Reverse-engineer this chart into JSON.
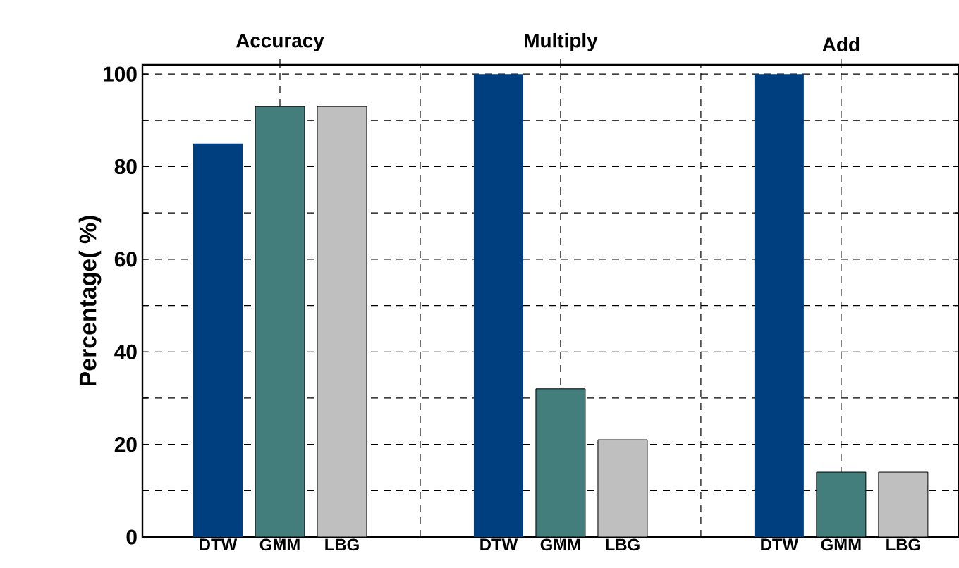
{
  "chart_data": {
    "type": "bar",
    "ylabel": "Percentage( %)",
    "categories": [
      "Accuracy",
      "Multiply",
      "Add"
    ],
    "series": [
      {
        "name": "DTW",
        "color": "#003f7f",
        "values": [
          85,
          100,
          100
        ]
      },
      {
        "name": "GMM",
        "color": "#437e7c",
        "values": [
          93,
          32,
          14
        ]
      },
      {
        "name": "LBG",
        "color": "#bfbfbf",
        "values": [
          93,
          21,
          14
        ]
      }
    ],
    "ylim": [
      0,
      102
    ],
    "yticks": [
      0,
      {
        "value": 10,
        "label": null
      },
      20,
      {
        "value": 30,
        "label": null
      },
      40,
      {
        "value": 50,
        "label": null
      },
      60,
      {
        "value": 70,
        "label": null
      },
      80,
      {
        "value": 90,
        "label": null
      },
      100
    ],
    "grid": true
  }
}
